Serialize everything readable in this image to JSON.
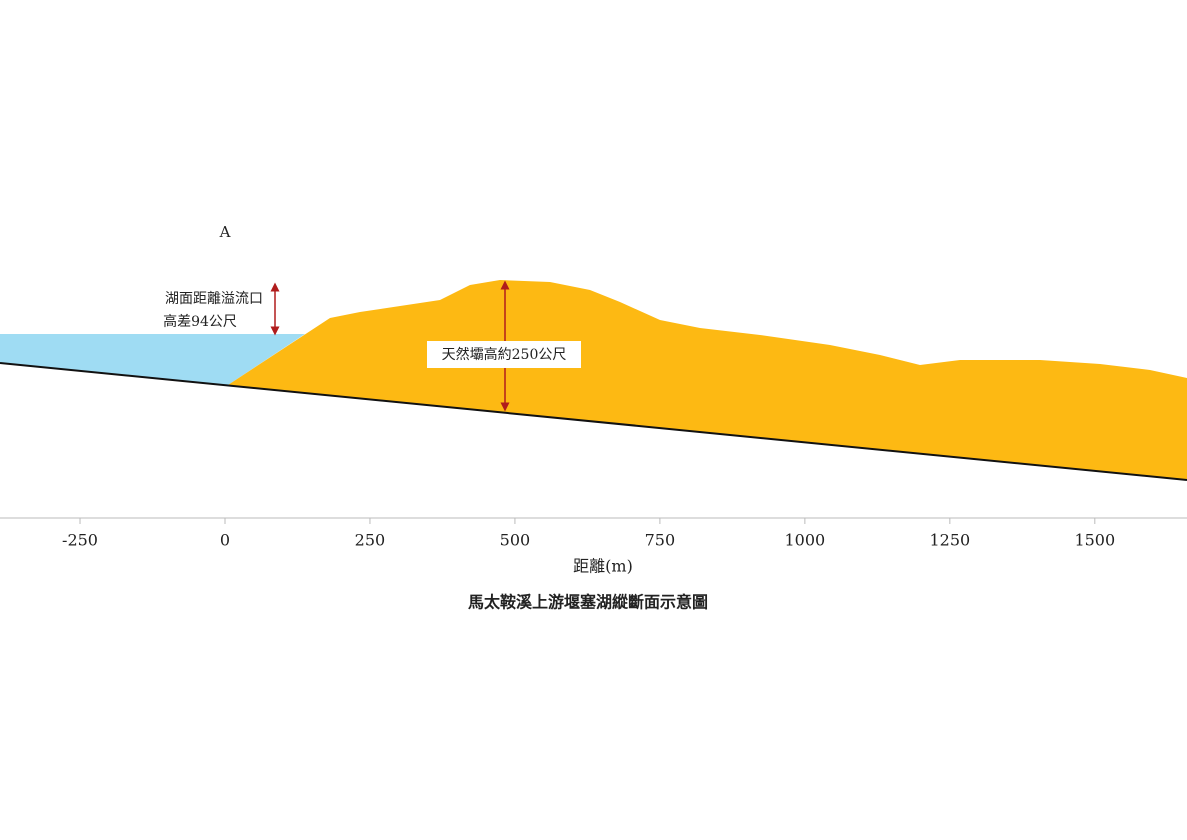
{
  "title": "馬太鞍溪上游堰塞湖縱斷面示意圖",
  "x_axis": {
    "label": "距離(m)",
    "lim": [
      -388,
      1659
    ],
    "ticks": [
      -250,
      0,
      250,
      500,
      750,
      1000,
      1250,
      1500
    ]
  },
  "annotations": {
    "point": "A",
    "lake_note": [
      "湖面距離溢流口",
      "高差94公尺"
    ],
    "dam_note": "天然壩高約250公尺"
  }
}
